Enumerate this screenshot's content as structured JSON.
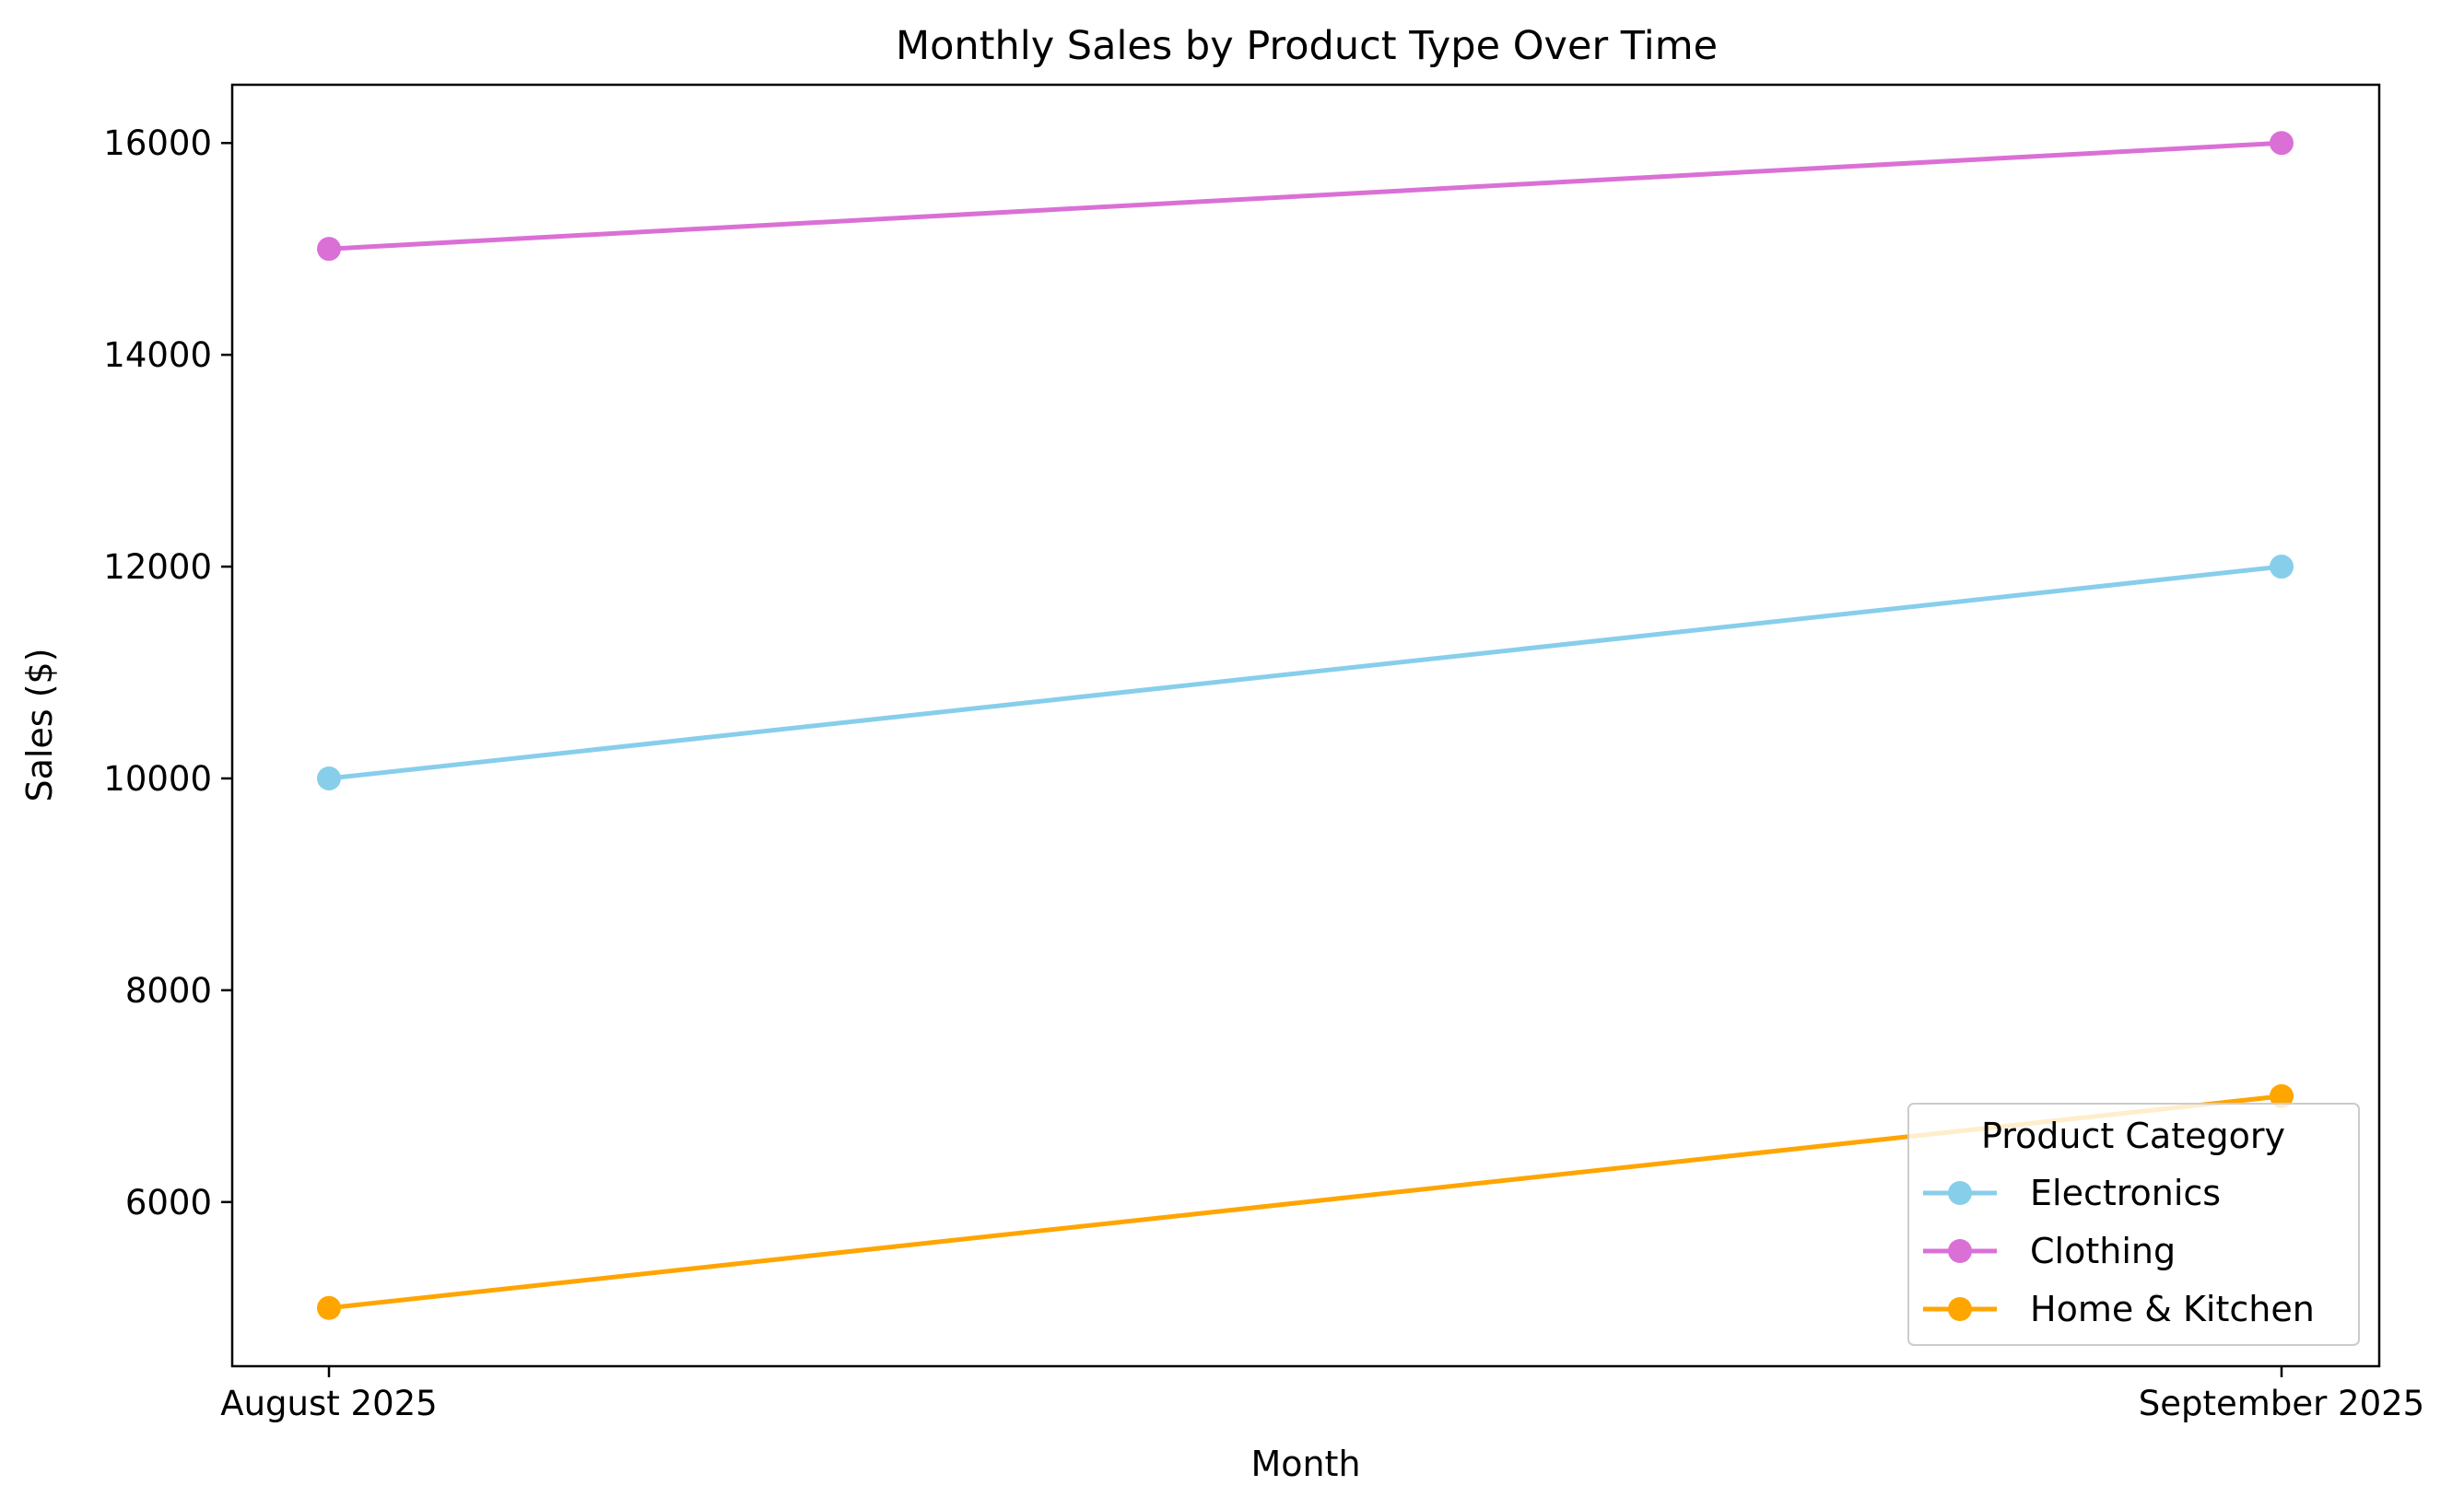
{
  "chart_data": {
    "type": "line",
    "title": "Monthly Sales by Product Type Over Time",
    "xlabel": "Month",
    "ylabel": "Sales ($)",
    "categories": [
      "August 2025",
      "September 2025"
    ],
    "y_ticks": [
      6000,
      8000,
      10000,
      12000,
      14000,
      16000
    ],
    "ylim": [
      4450,
      16550
    ],
    "grid": false,
    "legend": {
      "title": "Product Category",
      "placement": "lower right"
    },
    "series": [
      {
        "name": "Electronics",
        "color": "#87CEEB",
        "values": [
          10000,
          12000
        ]
      },
      {
        "name": "Clothing",
        "color": "#DA70D6",
        "values": [
          15000,
          16000
        ]
      },
      {
        "name": "Home & Kitchen",
        "color": "#FFA500",
        "values": [
          5000,
          7000
        ]
      }
    ]
  }
}
